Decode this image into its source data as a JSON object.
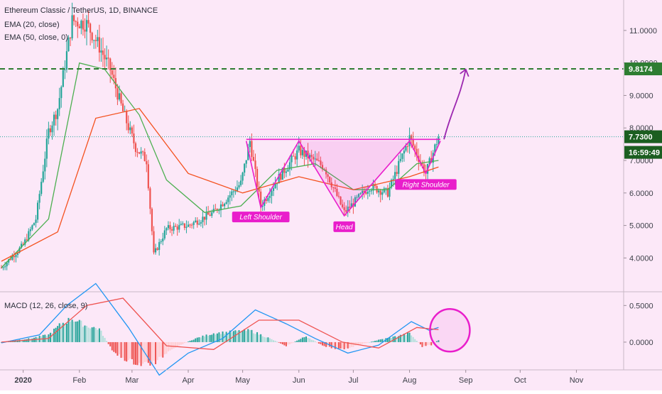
{
  "header": {
    "symbol_line": "Ethereum Classic / TetherUS, 1D, BINANCE",
    "ema20": "EMA (20, close)",
    "ema50": "EMA (50, close, 0)"
  },
  "macd_label": "MACD (12, 26, close, 9)",
  "colors": {
    "background": "#fce8f8",
    "up": "#26a69a",
    "down": "#ef5350",
    "ema20": "#4caf50",
    "ema50": "#f4511e",
    "pattern": "#e91ecb",
    "projection": "#9c27b0",
    "target": "#2e7d32",
    "price_tag": "#1b5e20",
    "macd_line": "#2196f3",
    "signal_line": "#ef5350"
  },
  "chart_data": [
    {
      "type": "candlestick",
      "title": "Ethereum Classic / TetherUS, 1D, BINANCE",
      "x_tick_labels": [
        "2020",
        "Feb",
        "Mar",
        "Apr",
        "May",
        "Jun",
        "Jul",
        "Aug",
        "Sep",
        "Oct",
        "Nov"
      ],
      "y_tick_labels": [
        "4.0000",
        "5.0000",
        "6.0000",
        "7.0000",
        "8.0000",
        "9.0000",
        "10.0000",
        "11.0000"
      ],
      "ylim": [
        3.2,
        11.5
      ],
      "grid": false,
      "series_close": [
        {
          "date": "2019-12-20",
          "close": 3.7
        },
        {
          "date": "2020-01-01",
          "close": 4.4
        },
        {
          "date": "2020-01-08",
          "close": 5.2
        },
        {
          "date": "2020-01-15",
          "close": 7.9
        },
        {
          "date": "2020-01-20",
          "close": 8.6
        },
        {
          "date": "2020-01-28",
          "close": 11.3
        },
        {
          "date": "2020-02-05",
          "close": 11.2
        },
        {
          "date": "2020-02-12",
          "close": 10.5
        },
        {
          "date": "2020-02-18",
          "close": 9.8
        },
        {
          "date": "2020-02-25",
          "close": 8.5
        },
        {
          "date": "2020-03-03",
          "close": 7.4
        },
        {
          "date": "2020-03-09",
          "close": 7.0
        },
        {
          "date": "2020-03-13",
          "close": 4.1
        },
        {
          "date": "2020-03-20",
          "close": 4.9
        },
        {
          "date": "2020-04-01",
          "close": 5.0
        },
        {
          "date": "2020-04-15",
          "close": 5.4
        },
        {
          "date": "2020-04-30",
          "close": 6.3
        },
        {
          "date": "2020-05-05",
          "close": 7.6
        },
        {
          "date": "2020-05-11",
          "close": 5.6
        },
        {
          "date": "2020-05-20",
          "close": 6.4
        },
        {
          "date": "2020-06-01",
          "close": 7.3
        },
        {
          "date": "2020-06-15",
          "close": 6.8
        },
        {
          "date": "2020-06-26",
          "close": 5.4
        },
        {
          "date": "2020-07-10",
          "close": 6.2
        },
        {
          "date": "2020-07-20",
          "close": 6.0
        },
        {
          "date": "2020-08-01",
          "close": 7.7
        },
        {
          "date": "2020-08-10",
          "close": 6.6
        },
        {
          "date": "2020-08-17",
          "close": 7.73
        }
      ],
      "ema20_close": [
        {
          "date": "2019-12-20",
          "v": 3.7
        },
        {
          "date": "2020-01-15",
          "v": 5.2
        },
        {
          "date": "2020-02-01",
          "v": 10.0
        },
        {
          "date": "2020-02-15",
          "v": 9.8
        },
        {
          "date": "2020-03-05",
          "v": 8.4
        },
        {
          "date": "2020-03-20",
          "v": 6.4
        },
        {
          "date": "2020-04-10",
          "v": 5.4
        },
        {
          "date": "2020-04-30",
          "v": 5.6
        },
        {
          "date": "2020-05-20",
          "v": 6.7
        },
        {
          "date": "2020-06-10",
          "v": 6.9
        },
        {
          "date": "2020-07-01",
          "v": 6.1
        },
        {
          "date": "2020-07-20",
          "v": 6.1
        },
        {
          "date": "2020-08-05",
          "v": 6.9
        },
        {
          "date": "2020-08-17",
          "v": 7.0
        }
      ],
      "ema50_close": [
        {
          "date": "2019-12-20",
          "v": 3.9
        },
        {
          "date": "2020-01-20",
          "v": 4.8
        },
        {
          "date": "2020-02-10",
          "v": 8.3
        },
        {
          "date": "2020-03-05",
          "v": 8.6
        },
        {
          "date": "2020-04-01",
          "v": 6.6
        },
        {
          "date": "2020-05-01",
          "v": 6.0
        },
        {
          "date": "2020-06-01",
          "v": 6.5
        },
        {
          "date": "2020-07-01",
          "v": 6.1
        },
        {
          "date": "2020-08-01",
          "v": 6.5
        },
        {
          "date": "2020-08-17",
          "v": 6.8
        }
      ],
      "levels": {
        "target": 9.8174,
        "current": 7.73
      },
      "price_labels": {
        "target": "9.8174",
        "current": "7.7300",
        "countdown": "16:59:49"
      },
      "annotations": [
        {
          "text": "Left Shoulder",
          "date": "2020-05-11",
          "price": 5.6
        },
        {
          "text": "Head",
          "date": "2020-06-26",
          "price": 5.3
        },
        {
          "text": "Right Shoulder",
          "date": "2020-08-10",
          "price": 6.6
        }
      ],
      "pattern_path": [
        {
          "date": "2020-05-03",
          "price": 7.6
        },
        {
          "date": "2020-05-11",
          "price": 5.55
        },
        {
          "date": "2020-06-01",
          "price": 7.6
        },
        {
          "date": "2020-06-26",
          "price": 5.3
        },
        {
          "date": "2020-08-01",
          "price": 7.6
        },
        {
          "date": "2020-08-10",
          "price": 6.6
        },
        {
          "date": "2020-08-18",
          "price": 7.6
        }
      ],
      "neckline": [
        {
          "date": "2020-05-03",
          "price": 7.65
        },
        {
          "date": "2020-08-18",
          "price": 7.65
        }
      ],
      "projection": [
        {
          "date": "2020-08-20",
          "price": 7.65
        },
        {
          "date": "2020-09-01",
          "price": 9.8
        }
      ]
    },
    {
      "type": "macd",
      "title": "MACD (12, 26, close, 9)",
      "y_tick_labels": [
        "0.0000",
        "0.5000"
      ],
      "ylim": [
        -0.33,
        0.6
      ],
      "macd": [
        {
          "date": "2019-12-20",
          "v": -0.01
        },
        {
          "date": "2020-01-10",
          "v": 0.1
        },
        {
          "date": "2020-01-25",
          "v": 0.5
        },
        {
          "date": "2020-02-10",
          "v": 0.8
        },
        {
          "date": "2020-02-28",
          "v": 0.2
        },
        {
          "date": "2020-03-16",
          "v": -0.45
        },
        {
          "date": "2020-04-01",
          "v": -0.15
        },
        {
          "date": "2020-04-20",
          "v": 0.05
        },
        {
          "date": "2020-05-08",
          "v": 0.44
        },
        {
          "date": "2020-05-25",
          "v": 0.25
        },
        {
          "date": "2020-06-10",
          "v": 0.05
        },
        {
          "date": "2020-06-28",
          "v": -0.15
        },
        {
          "date": "2020-07-15",
          "v": -0.04
        },
        {
          "date": "2020-08-02",
          "v": 0.28
        },
        {
          "date": "2020-08-12",
          "v": 0.16
        },
        {
          "date": "2020-08-17",
          "v": 0.2
        }
      ],
      "signal": [
        {
          "date": "2019-12-20",
          "v": 0.0
        },
        {
          "date": "2020-01-15",
          "v": 0.05
        },
        {
          "date": "2020-02-05",
          "v": 0.5
        },
        {
          "date": "2020-02-25",
          "v": 0.6
        },
        {
          "date": "2020-03-20",
          "v": -0.05
        },
        {
          "date": "2020-04-15",
          "v": -0.1
        },
        {
          "date": "2020-05-10",
          "v": 0.3
        },
        {
          "date": "2020-06-01",
          "v": 0.3
        },
        {
          "date": "2020-06-25",
          "v": 0.0
        },
        {
          "date": "2020-07-15",
          "v": -0.08
        },
        {
          "date": "2020-08-05",
          "v": 0.2
        },
        {
          "date": "2020-08-17",
          "v": 0.17
        }
      ],
      "histogram": [
        {
          "date": "2020-01-05",
          "v": 0.05
        },
        {
          "date": "2020-01-15",
          "v": 0.1
        },
        {
          "date": "2020-01-22",
          "v": 0.25
        },
        {
          "date": "2020-01-28",
          "v": 0.32
        },
        {
          "date": "2020-02-05",
          "v": 0.22
        },
        {
          "date": "2020-02-12",
          "v": 0.18
        },
        {
          "date": "2020-02-20",
          "v": -0.15
        },
        {
          "date": "2020-02-28",
          "v": -0.25
        },
        {
          "date": "2020-03-06",
          "v": -0.3
        },
        {
          "date": "2020-03-14",
          "v": -0.28
        },
        {
          "date": "2020-03-22",
          "v": -0.1
        },
        {
          "date": "2020-04-05",
          "v": 0.05
        },
        {
          "date": "2020-04-15",
          "v": 0.12
        },
        {
          "date": "2020-04-25",
          "v": 0.14
        },
        {
          "date": "2020-05-05",
          "v": 0.16
        },
        {
          "date": "2020-05-15",
          "v": 0.06
        },
        {
          "date": "2020-05-25",
          "v": -0.05
        },
        {
          "date": "2020-06-05",
          "v": 0.08
        },
        {
          "date": "2020-06-15",
          "v": -0.06
        },
        {
          "date": "2020-06-25",
          "v": -0.1
        },
        {
          "date": "2020-07-05",
          "v": -0.03
        },
        {
          "date": "2020-07-15",
          "v": 0.03
        },
        {
          "date": "2020-07-25",
          "v": 0.08
        },
        {
          "date": "2020-08-01",
          "v": 0.12
        },
        {
          "date": "2020-08-08",
          "v": -0.06
        },
        {
          "date": "2020-08-13",
          "v": -0.04
        },
        {
          "date": "2020-08-17",
          "v": 0.03
        }
      ],
      "highlight": {
        "date": "2020-08-17",
        "v": 0.2
      }
    }
  ]
}
